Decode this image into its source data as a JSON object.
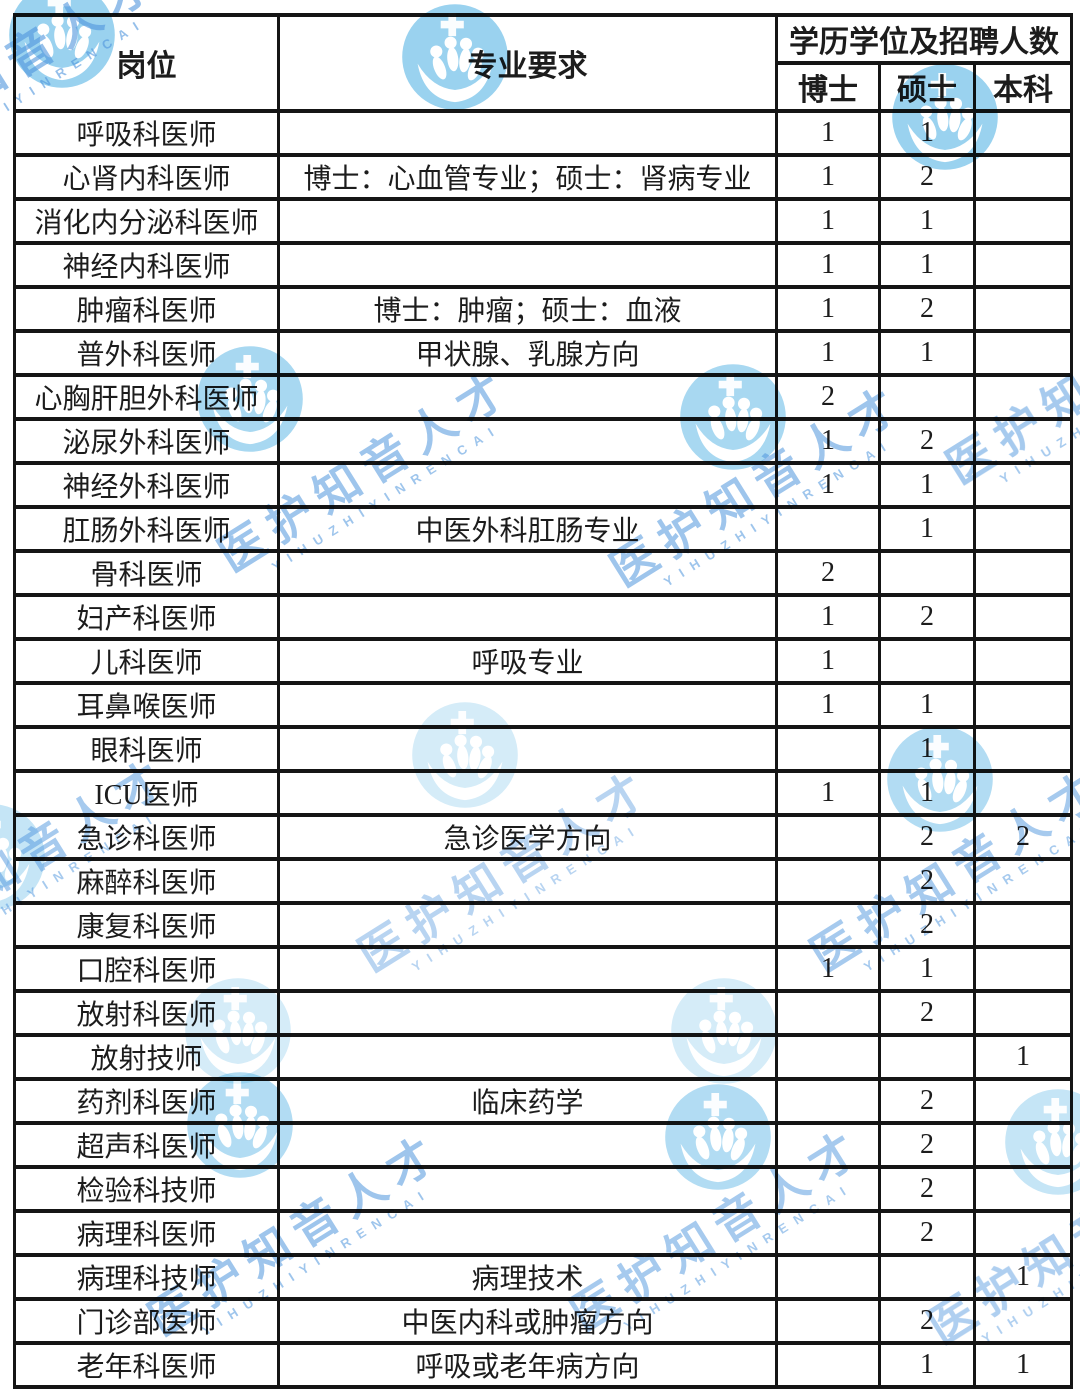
{
  "watermark": {
    "brand_text": "医护知音人才",
    "brand_subtext": "YIHUZHIYINRENCAI",
    "logo_icon": "hands-holding-people-icon",
    "logo_color": "#3fa9e0",
    "text_color": "#4f95dd"
  },
  "table": {
    "headers": {
      "position": "岗位",
      "requirement": "专业要求",
      "education_group": "学历学位及招聘人数",
      "doctoral": "博士",
      "master": "硕士",
      "bachelor": "本科"
    },
    "rows": [
      {
        "position": "呼吸科医师",
        "requirement": "",
        "doctoral": "1",
        "master": "1",
        "bachelor": ""
      },
      {
        "position": "心肾内科医师",
        "requirement": "博士：心血管专业；硕士：肾病专业",
        "doctoral": "1",
        "master": "2",
        "bachelor": ""
      },
      {
        "position": "消化内分泌科医师",
        "requirement": "",
        "doctoral": "1",
        "master": "1",
        "bachelor": ""
      },
      {
        "position": "神经内科医师",
        "requirement": "",
        "doctoral": "1",
        "master": "1",
        "bachelor": ""
      },
      {
        "position": "肿瘤科医师",
        "requirement": "博士：肿瘤；硕士：血液",
        "doctoral": "1",
        "master": "2",
        "bachelor": ""
      },
      {
        "position": "普外科医师",
        "requirement": "甲状腺、乳腺方向",
        "doctoral": "1",
        "master": "1",
        "bachelor": ""
      },
      {
        "position": "心胸肝胆外科医师",
        "requirement": "",
        "doctoral": "2",
        "master": "",
        "bachelor": ""
      },
      {
        "position": "泌尿外科医师",
        "requirement": "",
        "doctoral": "1",
        "master": "2",
        "bachelor": ""
      },
      {
        "position": "神经外科医师",
        "requirement": "",
        "doctoral": "1",
        "master": "1",
        "bachelor": ""
      },
      {
        "position": "肛肠外科医师",
        "requirement": "中医外科肛肠专业",
        "doctoral": "",
        "master": "1",
        "bachelor": ""
      },
      {
        "position": "骨科医师",
        "requirement": "",
        "doctoral": "2",
        "master": "",
        "bachelor": ""
      },
      {
        "position": "妇产科医师",
        "requirement": "",
        "doctoral": "1",
        "master": "2",
        "bachelor": ""
      },
      {
        "position": "儿科医师",
        "requirement": "呼吸专业",
        "doctoral": "1",
        "master": "",
        "bachelor": ""
      },
      {
        "position": "耳鼻喉医师",
        "requirement": "",
        "doctoral": "1",
        "master": "1",
        "bachelor": ""
      },
      {
        "position": "眼科医师",
        "requirement": "",
        "doctoral": "",
        "master": "1",
        "bachelor": ""
      },
      {
        "position": "ICU医师",
        "requirement": "",
        "doctoral": "1",
        "master": "1",
        "bachelor": ""
      },
      {
        "position": "急诊科医师",
        "requirement": "急诊医学方向",
        "doctoral": "",
        "master": "2",
        "bachelor": "2"
      },
      {
        "position": "麻醉科医师",
        "requirement": "",
        "doctoral": "",
        "master": "2",
        "bachelor": ""
      },
      {
        "position": "康复科医师",
        "requirement": "",
        "doctoral": "",
        "master": "2",
        "bachelor": ""
      },
      {
        "position": "口腔科医师",
        "requirement": "",
        "doctoral": "1",
        "master": "1",
        "bachelor": ""
      },
      {
        "position": "放射科医师",
        "requirement": "",
        "doctoral": "",
        "master": "2",
        "bachelor": ""
      },
      {
        "position": "放射技师",
        "requirement": "",
        "doctoral": "",
        "master": "",
        "bachelor": "1"
      },
      {
        "position": "药剂科医师",
        "requirement": "临床药学",
        "doctoral": "",
        "master": "2",
        "bachelor": ""
      },
      {
        "position": "超声科医师",
        "requirement": "",
        "doctoral": "",
        "master": "2",
        "bachelor": ""
      },
      {
        "position": "检验科技师",
        "requirement": "",
        "doctoral": "",
        "master": "2",
        "bachelor": ""
      },
      {
        "position": "病理科医师",
        "requirement": "",
        "doctoral": "",
        "master": "2",
        "bachelor": ""
      },
      {
        "position": "病理科技师",
        "requirement": "病理技术",
        "doctoral": "",
        "master": "",
        "bachelor": "1"
      },
      {
        "position": "门诊部医师",
        "requirement": "中医内科或肿瘤方向",
        "doctoral": "",
        "master": "2",
        "bachelor": ""
      },
      {
        "position": "老年科医师",
        "requirement": "呼吸或老年病方向",
        "doctoral": "",
        "master": "1",
        "bachelor": "1"
      }
    ]
  }
}
